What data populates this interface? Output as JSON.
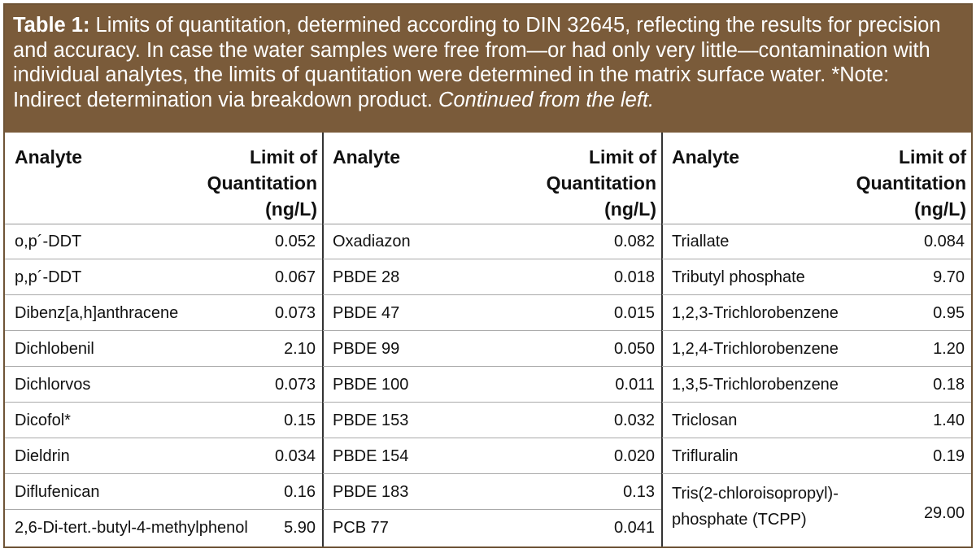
{
  "caption": {
    "label": "Table 1:",
    "text": " Limits of quantitation, determined according to DIN 32645, reflecting the results for precision and accuracy. In case the water samples were free from—or had only very little—contamination with individual analytes, the limits of quantitation were determined in the matrix surface water. *Note: Indirect determination via breakdown product. ",
    "continued": "Continued from the left."
  },
  "header": {
    "analyte": "Analyte",
    "loq_line1": "Limit of",
    "loq_line2": "Quantitation",
    "loq_line3": "(ng/L)"
  },
  "columns": [
    [
      {
        "name": "o,p´-DDT",
        "value": "0.052"
      },
      {
        "name": "p,p´-DDT",
        "value": "0.067"
      },
      {
        "name": "Dibenz[a,h]anthracene",
        "value": "0.073"
      },
      {
        "name": "Dichlobenil",
        "value": "2.10"
      },
      {
        "name": "Dichlorvos",
        "value": "0.073"
      },
      {
        "name": "Dicofol*",
        "value": "0.15"
      },
      {
        "name": "Dieldrin",
        "value": "0.034"
      },
      {
        "name": "Diflufenican",
        "value": "0.16"
      },
      {
        "name": "2,6-Di-tert.-butyl-4-methylphenol",
        "value": "5.90"
      }
    ],
    [
      {
        "name": "Oxadiazon",
        "value": "0.082"
      },
      {
        "name": "PBDE 28",
        "value": "0.018"
      },
      {
        "name": "PBDE 47",
        "value": "0.015"
      },
      {
        "name": "PBDE 99",
        "value": "0.050"
      },
      {
        "name": "PBDE 100",
        "value": "0.011"
      },
      {
        "name": "PBDE 153",
        "value": "0.032"
      },
      {
        "name": "PBDE 154",
        "value": "0.020"
      },
      {
        "name": "PBDE 183",
        "value": "0.13"
      },
      {
        "name": "PCB 77",
        "value": "0.041"
      }
    ],
    [
      {
        "name": "Triallate",
        "value": "0.084"
      },
      {
        "name": "Tributyl phosphate",
        "value": "9.70"
      },
      {
        "name": "1,2,3-Trichlorobenzene",
        "value": "0.95"
      },
      {
        "name": "1,2,4-Trichlorobenzene",
        "value": "1.20"
      },
      {
        "name": "1,3,5-Trichlorobenzene",
        "value": "0.18"
      },
      {
        "name": "Triclosan",
        "value": "1.40"
      },
      {
        "name": "Trifluralin",
        "value": "0.19"
      },
      {
        "name": "Tris(2-chloroisopropyl)-phosphate (TCPP)",
        "value": "29.00"
      }
    ]
  ],
  "colors": {
    "caption_bg": "#7a5b3a",
    "border": "#6e5436"
  }
}
